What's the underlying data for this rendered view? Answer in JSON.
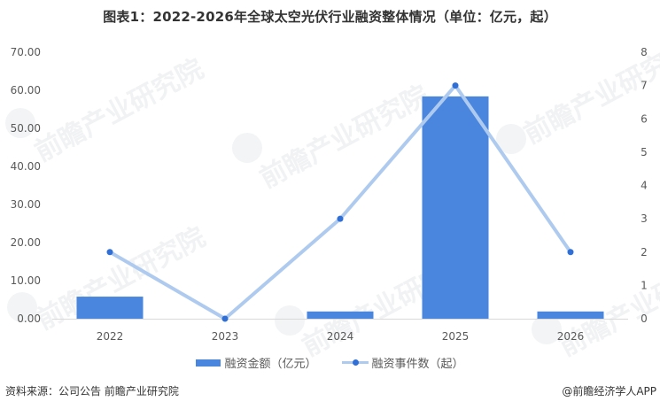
{
  "title": "图表1：2022-2026年全球太空光伏行业融资整体情况（单位：亿元，起）",
  "colors": {
    "bar": "#4a86de",
    "line": "#aecbef",
    "marker": "#2f6fd6",
    "axis": "#d9d9d9",
    "tick_text": "#595959"
  },
  "legend": {
    "bar_label": "融资金额（亿元）",
    "line_label": "融资事件数（起）"
  },
  "footer": {
    "source": "资料来源：公司公告 前瞻产业研究院",
    "credit": "@前瞻经济学人APP"
  },
  "watermark_text": "前瞻产业研究院",
  "chart_data": {
    "type": "bar+line",
    "title": "图表1：2022-2026年全球太空光伏行业融资整体情况（单位：亿元，起）",
    "categories": [
      "2022",
      "2023",
      "2024",
      "2025",
      "2026"
    ],
    "series": [
      {
        "name": "融资金额（亿元）",
        "type": "bar",
        "axis": "left",
        "values": [
          5.8,
          0,
          1.9,
          58.4,
          1.9
        ]
      },
      {
        "name": "融资事件数（起）",
        "type": "line",
        "axis": "right",
        "values": [
          2,
          0,
          3,
          7,
          2
        ]
      }
    ],
    "left_axis": {
      "ylim": [
        0,
        70
      ],
      "ticks": [
        "0.00",
        "10.00",
        "20.00",
        "30.00",
        "40.00",
        "50.00",
        "60.00",
        "70.00"
      ]
    },
    "right_axis": {
      "ylim": [
        0,
        8
      ],
      "ticks": [
        "0",
        "1",
        "2",
        "3",
        "4",
        "5",
        "6",
        "7",
        "8"
      ]
    },
    "xlabel": "",
    "ylabel": "",
    "grid": false,
    "legend_position": "bottom"
  }
}
